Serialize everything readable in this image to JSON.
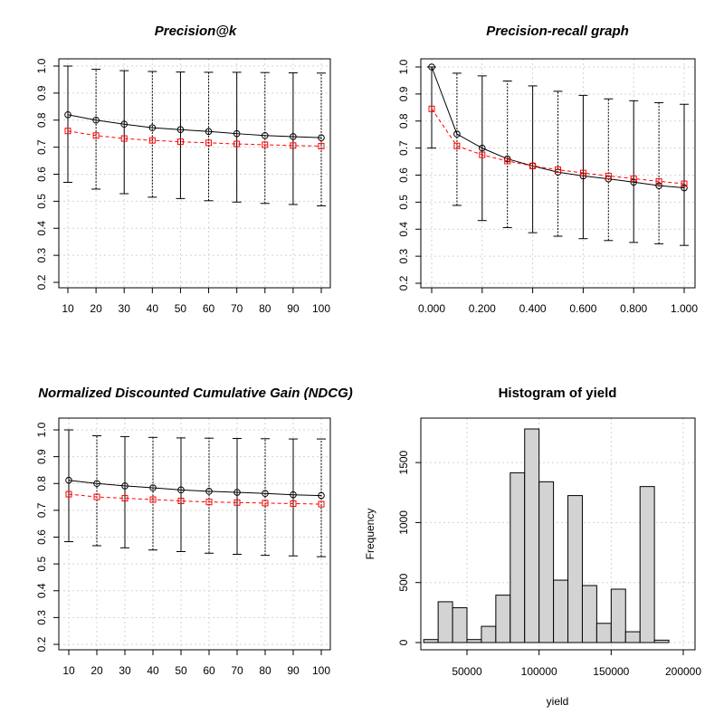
{
  "chart_data": [
    {
      "id": "precision-at-k",
      "type": "line",
      "title": "Precision@k",
      "title_italic": true,
      "xlabel": "",
      "ylabel": "",
      "x": [
        10,
        20,
        30,
        40,
        50,
        60,
        70,
        80,
        90,
        100
      ],
      "x_tick_labels": [
        "10",
        "20",
        "30",
        "40",
        "50",
        "60",
        "70",
        "80",
        "90",
        "100"
      ],
      "xlim": [
        10,
        100
      ],
      "ylim": [
        0.2,
        1.0
      ],
      "y_ticks": [
        0.2,
        0.3,
        0.4,
        0.5,
        0.6,
        0.7,
        0.8,
        0.9,
        1.0
      ],
      "y_tick_labels": [
        "0.2",
        "0.3",
        "0.4",
        "0.5",
        "0.6",
        "0.7",
        "0.8",
        "0.9",
        "1.0"
      ],
      "grid": true,
      "series": [
        {
          "marker": "circle",
          "line": "solid",
          "color": "#000000",
          "values": [
            0.82,
            0.8,
            0.785,
            0.772,
            0.765,
            0.758,
            0.75,
            0.743,
            0.739,
            0.735
          ]
        },
        {
          "marker": "square",
          "line": "dashed",
          "color": "#ff0000",
          "values": [
            0.76,
            0.743,
            0.732,
            0.725,
            0.72,
            0.716,
            0.712,
            0.709,
            0.706,
            0.704
          ]
        }
      ],
      "error_bars": [
        {
          "x": 10,
          "low": 0.57,
          "high": 1.0
        },
        {
          "x": 20,
          "low": 0.545,
          "high": 0.988
        },
        {
          "x": 30,
          "low": 0.528,
          "high": 0.983
        },
        {
          "x": 40,
          "low": 0.515,
          "high": 0.98
        },
        {
          "x": 50,
          "low": 0.51,
          "high": 0.978
        },
        {
          "x": 60,
          "low": 0.502,
          "high": 0.977
        },
        {
          "x": 70,
          "low": 0.497,
          "high": 0.977
        },
        {
          "x": 80,
          "low": 0.492,
          "high": 0.976
        },
        {
          "x": 90,
          "low": 0.488,
          "high": 0.975
        },
        {
          "x": 100,
          "low": 0.483,
          "high": 0.974
        }
      ]
    },
    {
      "id": "precision-recall",
      "type": "line",
      "title": "Precision-recall graph",
      "title_italic": true,
      "xlabel": "",
      "ylabel": "",
      "x": [
        0.0,
        0.1,
        0.2,
        0.3,
        0.4,
        0.5,
        0.6,
        0.7,
        0.8,
        0.9,
        1.0
      ],
      "x_tick_labels": [
        "0.000",
        "0.200",
        "0.400",
        "0.600",
        "0.800",
        "1.000"
      ],
      "x_ticks": [
        0.0,
        0.2,
        0.4,
        0.6,
        0.8,
        1.0
      ],
      "xlim": [
        0.0,
        1.0
      ],
      "ylim": [
        0.2,
        1.0
      ],
      "y_ticks": [
        0.2,
        0.3,
        0.4,
        0.5,
        0.6,
        0.7,
        0.8,
        0.9,
        1.0
      ],
      "y_tick_labels": [
        "0.2",
        "0.3",
        "0.4",
        "0.5",
        "0.6",
        "0.7",
        "0.8",
        "0.9",
        "1.0"
      ],
      "grid": true,
      "series": [
        {
          "marker": "circle",
          "line": "solid",
          "color": "#000000",
          "values": [
            1.0,
            0.752,
            0.7,
            0.66,
            0.634,
            0.611,
            0.597,
            0.586,
            0.574,
            0.561,
            0.553
          ]
        },
        {
          "marker": "square",
          "line": "dashed",
          "color": "#ff0000",
          "values": [
            0.845,
            0.708,
            0.675,
            0.652,
            0.634,
            0.62,
            0.608,
            0.597,
            0.587,
            0.577,
            0.568
          ]
        }
      ],
      "error_bars": [
        {
          "x": 0.0,
          "low": 0.7,
          "high": 1.0
        },
        {
          "x": 0.1,
          "low": 0.488,
          "high": 0.977
        },
        {
          "x": 0.2,
          "low": 0.432,
          "high": 0.967
        },
        {
          "x": 0.3,
          "low": 0.406,
          "high": 0.948
        },
        {
          "x": 0.4,
          "low": 0.387,
          "high": 0.93
        },
        {
          "x": 0.5,
          "low": 0.374,
          "high": 0.91
        },
        {
          "x": 0.6,
          "low": 0.365,
          "high": 0.895
        },
        {
          "x": 0.7,
          "low": 0.358,
          "high": 0.882
        },
        {
          "x": 0.8,
          "low": 0.351,
          "high": 0.875
        },
        {
          "x": 0.9,
          "low": 0.346,
          "high": 0.868
        },
        {
          "x": 1.0,
          "low": 0.34,
          "high": 0.862
        }
      ]
    },
    {
      "id": "ndcg",
      "type": "line",
      "title": "Normalized Discounted Cumulative Gain (NDCG)",
      "title_italic": true,
      "xlabel": "",
      "ylabel": "",
      "x": [
        10,
        20,
        30,
        40,
        50,
        60,
        70,
        80,
        90,
        100
      ],
      "x_tick_labels": [
        "10",
        "20",
        "30",
        "40",
        "50",
        "60",
        "70",
        "80",
        "90",
        "100"
      ],
      "xlim": [
        10,
        100
      ],
      "ylim": [
        0.2,
        1.0
      ],
      "y_ticks": [
        0.2,
        0.3,
        0.4,
        0.5,
        0.6,
        0.7,
        0.8,
        0.9,
        1.0
      ],
      "y_tick_labels": [
        "0.2",
        "0.3",
        "0.4",
        "0.5",
        "0.6",
        "0.7",
        "0.8",
        "0.9",
        "1.0"
      ],
      "grid": true,
      "series": [
        {
          "marker": "circle",
          "line": "solid",
          "color": "#000000",
          "values": [
            0.812,
            0.8,
            0.791,
            0.784,
            0.776,
            0.771,
            0.767,
            0.763,
            0.758,
            0.755
          ]
        },
        {
          "marker": "square",
          "line": "dashed",
          "color": "#ff0000",
          "values": [
            0.76,
            0.75,
            0.745,
            0.74,
            0.735,
            0.731,
            0.729,
            0.727,
            0.725,
            0.723
          ]
        }
      ],
      "error_bars": [
        {
          "x": 10,
          "low": 0.583,
          "high": 1.0
        },
        {
          "x": 20,
          "low": 0.568,
          "high": 0.978
        },
        {
          "x": 30,
          "low": 0.56,
          "high": 0.975
        },
        {
          "x": 40,
          "low": 0.552,
          "high": 0.972
        },
        {
          "x": 50,
          "low": 0.546,
          "high": 0.97
        },
        {
          "x": 60,
          "low": 0.54,
          "high": 0.969
        },
        {
          "x": 70,
          "low": 0.536,
          "high": 0.968
        },
        {
          "x": 80,
          "low": 0.532,
          "high": 0.967
        },
        {
          "x": 90,
          "low": 0.53,
          "high": 0.966
        },
        {
          "x": 100,
          "low": 0.527,
          "high": 0.966
        }
      ]
    },
    {
      "id": "histogram-yield",
      "type": "bar",
      "title": "Histogram of yield",
      "title_italic": false,
      "xlabel": "yield",
      "ylabel": "Frequency",
      "xlim": [
        20000,
        200000
      ],
      "x_ticks": [
        50000,
        100000,
        150000,
        200000
      ],
      "x_tick_labels": [
        "50000",
        "100000",
        "150000",
        "200000"
      ],
      "ylim": [
        0,
        1780
      ],
      "y_ticks": [
        0,
        500,
        1000,
        1500
      ],
      "y_tick_labels": [
        "0",
        "500",
        "1000",
        "1500"
      ],
      "grid": true,
      "bar_color": "#d3d3d3",
      "bin_edges": [
        20000,
        30000,
        40000,
        50000,
        60000,
        70000,
        80000,
        90000,
        100000,
        110000,
        120000,
        130000,
        140000,
        150000,
        160000,
        170000,
        180000,
        190000
      ],
      "values": [
        25,
        340,
        290,
        25,
        135,
        395,
        1415,
        1780,
        1340,
        520,
        1225,
        475,
        160,
        445,
        90,
        1300,
        20
      ]
    }
  ]
}
